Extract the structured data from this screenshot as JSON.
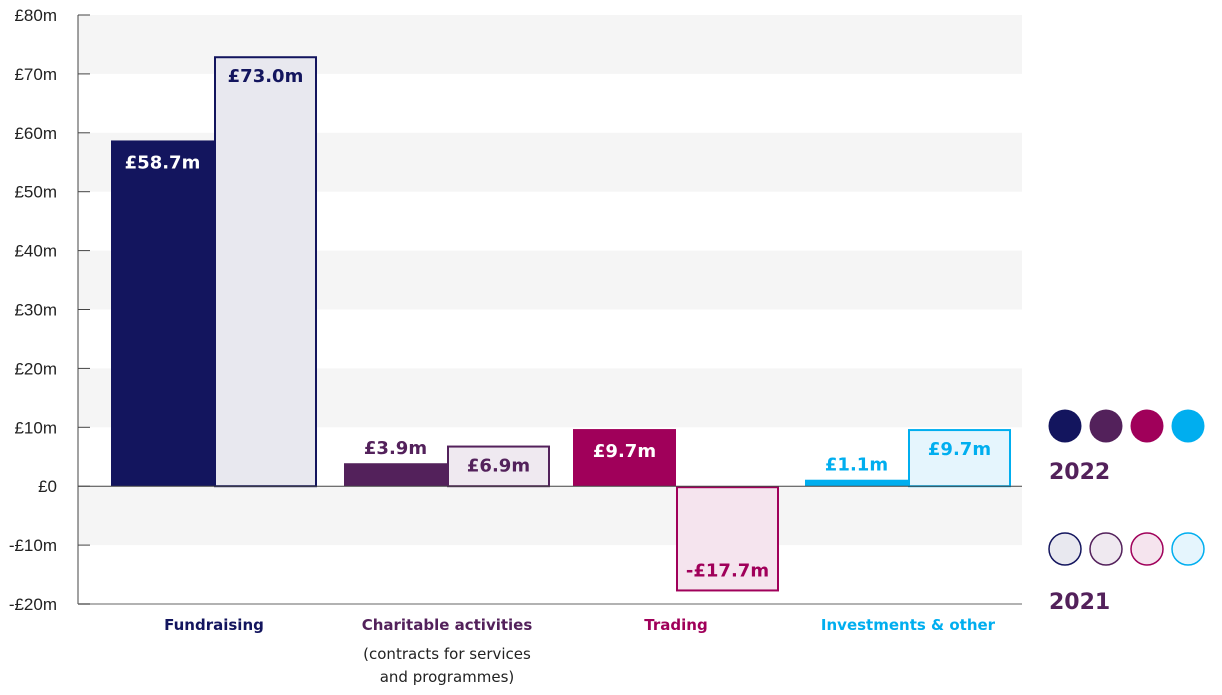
{
  "chart_data": {
    "type": "bar",
    "ylim": [
      -20,
      80
    ],
    "yticks": [
      80,
      70,
      60,
      50,
      40,
      30,
      20,
      10,
      0,
      -10,
      -20
    ],
    "ytick_labels": [
      "£80m",
      "£70m",
      "£60m",
      "£50m",
      "£40m",
      "£30m",
      "£20m",
      "£10m",
      "£0",
      "-£10m",
      "-£20m"
    ],
    "grid": "alternating horizontal bands",
    "categories": [
      {
        "label": "Fundraising",
        "sublabel": "",
        "color": "#13155e",
        "light": "#e8e8ef"
      },
      {
        "label": "Charitable activities",
        "sublabel": [
          "(contracts for services",
          "and programmes)"
        ],
        "color": "#53215b",
        "light": "#efe9f0"
      },
      {
        "label": "Trading",
        "sublabel": "",
        "color": "#a0005a",
        "light": "#f5e4ee"
      },
      {
        "label": "Investments & other",
        "sublabel": "",
        "color": "#00aeef",
        "light": "#e5f5fd"
      }
    ],
    "series": [
      {
        "name": "2022",
        "values": [
          58.7,
          3.9,
          9.7,
          1.1
        ],
        "labels": [
          "£58.7m",
          "£3.9m",
          "£9.7m",
          "£1.1m"
        ]
      },
      {
        "name": "2021",
        "values": [
          73.0,
          6.9,
          -17.7,
          9.7
        ],
        "labels": [
          "£73.0m",
          "£6.9m",
          "-£17.7m",
          "£9.7m"
        ]
      }
    ],
    "legend": {
      "placement": "right",
      "entries": [
        "2022",
        "2021"
      ]
    }
  }
}
